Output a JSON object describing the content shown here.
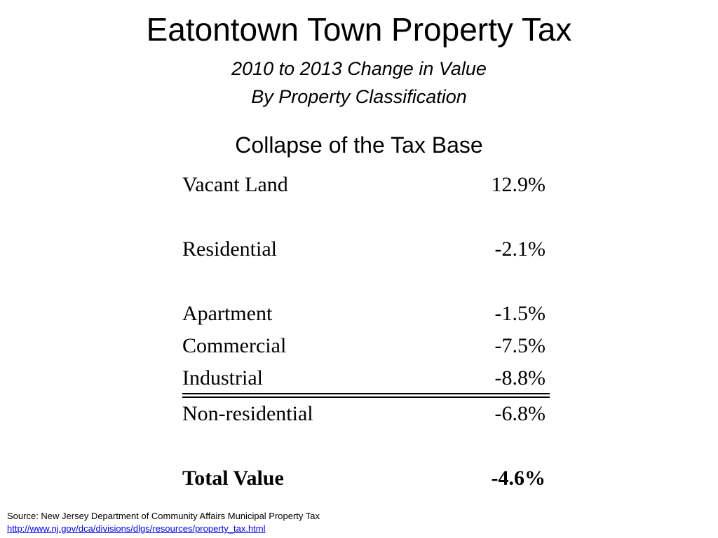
{
  "slide": {
    "title": "Eatontown Town Property Tax",
    "subtitle_line1": "2010 to 2013 Change in Value",
    "subtitle_line2": "By Property Classification",
    "heading": "Collapse of the Tax Base"
  },
  "table": {
    "rows": [
      {
        "label": "Vacant Land",
        "value": "12.9%"
      },
      {
        "label": "Residential",
        "value": "-2.1%"
      },
      {
        "label": "Apartment",
        "value": "-1.5%"
      },
      {
        "label": "Commercial",
        "value": "-7.5%"
      },
      {
        "label": "Industrial",
        "value": "-8.8%"
      },
      {
        "label": "Non-residential",
        "value": "-6.8%"
      },
      {
        "label": "Total Value",
        "value": "-4.6%"
      }
    ]
  },
  "source": {
    "text": "Source: New Jersey Department of Community Affairs Municipal Property Tax",
    "link": " http://www.nj.gov/dca/divisions/dlgs/resources/property_tax.html"
  }
}
